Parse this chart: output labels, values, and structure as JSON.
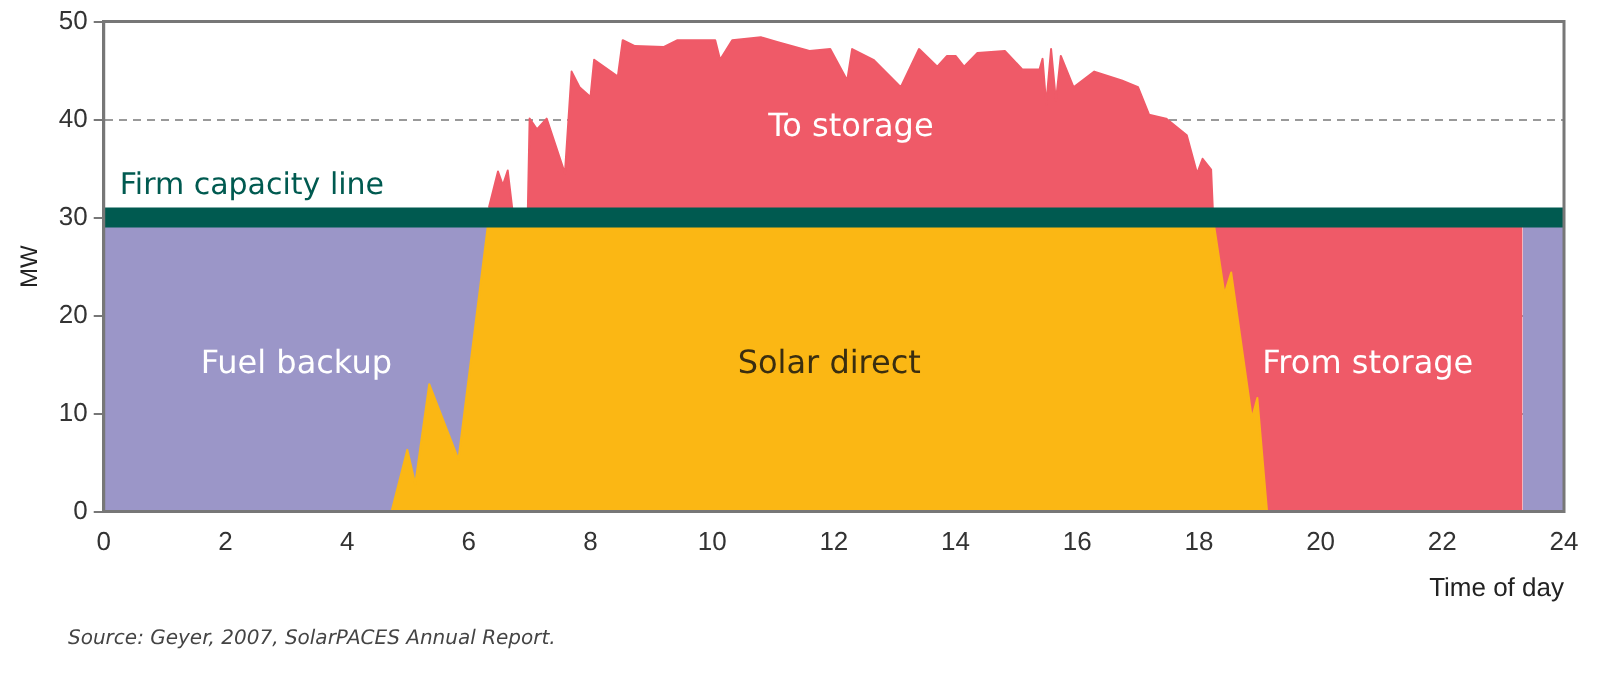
{
  "chart_data": {
    "type": "area",
    "xlabel": "Time of day",
    "ylabel": "MW",
    "xlim": [
      0,
      24
    ],
    "xticks": [
      0,
      2,
      4,
      6,
      8,
      10,
      12,
      14,
      16,
      18,
      20,
      22,
      24
    ],
    "ylim": [
      0,
      50
    ],
    "yticks": [
      0,
      10,
      20,
      30,
      40,
      50
    ],
    "grid": "y",
    "legend": false,
    "series": [
      {
        "name": "To storage",
        "color": "#ef5a68",
        "x": [
          6.33,
          6.48,
          6.56,
          6.64,
          6.72,
          6.97,
          7.0,
          7.12,
          7.28,
          7.58,
          7.69,
          7.82,
          8.0,
          8.06,
          8.45,
          8.53,
          8.73,
          9.2,
          9.43,
          10.05,
          10.13,
          10.33,
          10.8,
          11.08,
          11.6,
          11.94,
          12.22,
          12.3,
          12.65,
          13.1,
          13.4,
          13.7,
          13.86,
          14.0,
          14.14,
          14.36,
          14.81,
          15.1,
          15.38,
          15.43,
          15.49,
          15.57,
          15.65,
          15.73,
          15.94,
          16.28,
          16.73,
          17.0,
          17.18,
          17.46,
          17.8,
          17.97,
          18.06,
          18.2,
          18.23
        ],
        "values": [
          31,
          34.7,
          33.3,
          34.8,
          30.6,
          30.6,
          40.1,
          39,
          40.1,
          34.5,
          44.9,
          43.3,
          42.3,
          46.1,
          44.4,
          48.1,
          47.5,
          47.4,
          48.1,
          48.1,
          46.1,
          48.1,
          48.4,
          47.9,
          47,
          47.2,
          44,
          47.2,
          46.1,
          43.3,
          47.2,
          45.4,
          46.5,
          46.5,
          45.4,
          46.8,
          47,
          45.1,
          45.1,
          46.2,
          41.5,
          47.2,
          41.9,
          46.5,
          43.3,
          44.9,
          44,
          43.3,
          40.5,
          40.1,
          38.4,
          34.5,
          36,
          34.9,
          30.6
        ]
      },
      {
        "name": "Fuel backup",
        "color": "#9b96c8",
        "x": [
          0,
          6.33,
          6.34,
          23.31,
          23.32,
          24
        ],
        "values": [
          30,
          30,
          null,
          null,
          30,
          30
        ]
      },
      {
        "name": "From storage",
        "color": "#ef5a68",
        "x": [
          18.23,
          23.32
        ],
        "values": [
          30,
          30
        ]
      },
      {
        "name": "Solar direct",
        "color": "#fbb714",
        "x": [
          4.73,
          4.99,
          5.12,
          5.35,
          5.83,
          6.33,
          18.23,
          18.42,
          18.53,
          18.87,
          18.96,
          19.12
        ],
        "values": [
          0,
          6.3,
          2.8,
          13,
          5.3,
          30,
          30,
          22.2,
          24.4,
          9.5,
          11.6,
          0
        ]
      }
    ],
    "ref_lines": [
      {
        "axis": "y",
        "value": 30,
        "label": "Firm capacity line",
        "color": "#005a50"
      }
    ],
    "annotations": [
      "Source: Geyer, 2007, SolarPACES Annual Report."
    ]
  }
}
